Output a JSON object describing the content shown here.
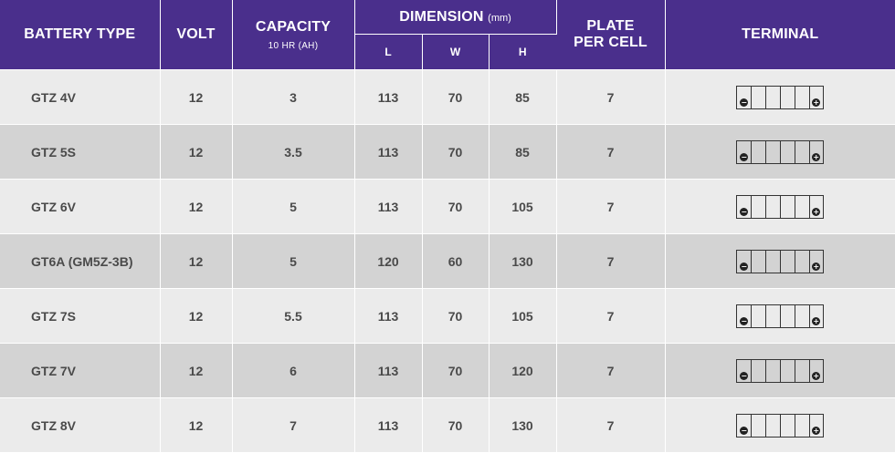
{
  "header": {
    "battery_type": "BATTERY TYPE",
    "volt": "VOLT",
    "capacity": "CAPACITY",
    "capacity_sub": "10 HR (AH)",
    "dimension": "DIMENSION",
    "dimension_unit": "(mm)",
    "dim_l": "L",
    "dim_w": "W",
    "dim_h": "H",
    "plate_line1": "PLATE",
    "plate_line2": "PER CELL",
    "terminal": "TERMINAL"
  },
  "terminal_symbols": {
    "negative": "−",
    "positive": "+"
  },
  "rows": [
    {
      "type": "GTZ 4V",
      "volt": "12",
      "capacity": "3",
      "l": "113",
      "w": "70",
      "h": "85",
      "plates": "7"
    },
    {
      "type": "GTZ 5S",
      "volt": "12",
      "capacity": "3.5",
      "l": "113",
      "w": "70",
      "h": "85",
      "plates": "7"
    },
    {
      "type": "GTZ 6V",
      "volt": "12",
      "capacity": "5",
      "l": "113",
      "w": "70",
      "h": "105",
      "plates": "7"
    },
    {
      "type": "GT6A (GM5Z-3B)",
      "volt": "12",
      "capacity": "5",
      "l": "120",
      "w": "60",
      "h": "130",
      "plates": "7"
    },
    {
      "type": "GTZ 7S",
      "volt": "12",
      "capacity": "5.5",
      "l": "113",
      "w": "70",
      "h": "105",
      "plates": "7"
    },
    {
      "type": "GTZ 7V",
      "volt": "12",
      "capacity": "6",
      "l": "113",
      "w": "70",
      "h": "120",
      "plates": "7"
    },
    {
      "type": "GTZ 8V",
      "volt": "12",
      "capacity": "7",
      "l": "113",
      "w": "70",
      "h": "130",
      "plates": "7"
    }
  ],
  "colors": {
    "header_bg": "#4a2f8c",
    "row_light": "#ebebeb",
    "row_dark": "#d3d3d3",
    "text": "#4a4a4a"
  }
}
